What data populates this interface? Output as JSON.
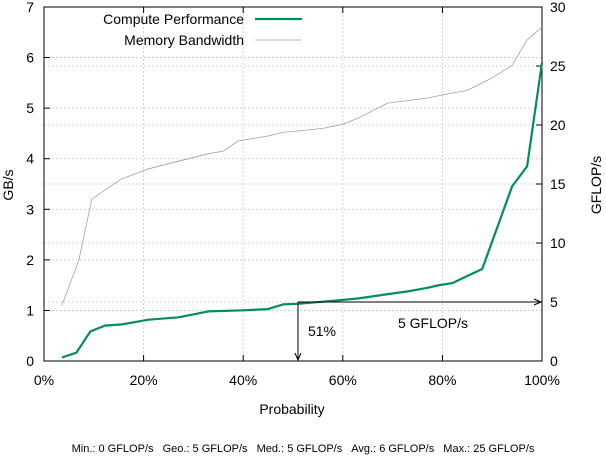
{
  "chart_data": {
    "type": "line",
    "x_axis": {
      "label": "Probability",
      "range": [
        0,
        100
      ],
      "ticks": [
        0,
        20,
        40,
        60,
        80,
        100
      ],
      "tick_labels": [
        "0%",
        "20%",
        "40%",
        "60%",
        "80%",
        "100%"
      ]
    },
    "y_axis_left": {
      "label": "GB/s",
      "range": [
        0,
        7
      ],
      "ticks": [
        0,
        1,
        2,
        3,
        4,
        5,
        6,
        7
      ],
      "tick_labels": [
        "0",
        "1",
        "2",
        "3",
        "4",
        "5",
        "6",
        "7"
      ]
    },
    "y_axis_right": {
      "label": "GFLOP/s",
      "range": [
        0,
        30
      ],
      "ticks": [
        0,
        5,
        10,
        15,
        20,
        25,
        30
      ],
      "tick_labels": [
        "0",
        "5",
        "10",
        "15",
        "20",
        "25",
        "30"
      ]
    },
    "grid": true,
    "legend_position": "top-left",
    "series": [
      {
        "name": "Compute Performance",
        "axis": "right",
        "color": "#008e5f",
        "x": [
          3.6,
          6.5,
          9.3,
          12.2,
          15.6,
          21,
          27,
          33,
          40,
          45,
          48,
          51,
          58,
          63,
          68,
          73,
          77,
          79,
          82,
          85,
          88,
          94,
          97,
          100
        ],
        "y": [
          0.3,
          0.7,
          2.5,
          3.0,
          3.1,
          3.5,
          3.7,
          4.2,
          4.3,
          4.4,
          4.8,
          4.85,
          5.1,
          5.3,
          5.6,
          5.9,
          6.2,
          6.4,
          6.6,
          7.2,
          7.8,
          14.8,
          16.5,
          25.3
        ]
      },
      {
        "name": "Memory Bandwidth",
        "axis": "left",
        "color": "#a0a0a0",
        "x": [
          3.6,
          7,
          9.6,
          12.5,
          15.6,
          21,
          27,
          33,
          36,
          39,
          42,
          45,
          48,
          51,
          56,
          60,
          63,
          66,
          69,
          73,
          77,
          81,
          85,
          88,
          90,
          94,
          97,
          100
        ],
        "y": [
          1.1,
          2.0,
          3.2,
          3.4,
          3.6,
          3.8,
          3.95,
          4.1,
          4.15,
          4.35,
          4.4,
          4.45,
          4.52,
          4.55,
          4.6,
          4.68,
          4.8,
          4.95,
          5.1,
          5.15,
          5.2,
          5.28,
          5.35,
          5.5,
          5.6,
          5.85,
          6.35,
          6.6
        ]
      }
    ],
    "annotations": {
      "percentile_label": "51%",
      "percentile_x": 51,
      "gflops_label": "5 GFLOP/s",
      "gflops_value": 5
    }
  },
  "footer": {
    "min": "Min.: 0 GFLOP/s",
    "geo": "Geo.: 5 GFLOP/s",
    "med": "Med.: 5 GFLOP/s",
    "avg": "Avg.: 6 GFLOP/s",
    "max": "Max.: 25 GFLOP/s"
  }
}
